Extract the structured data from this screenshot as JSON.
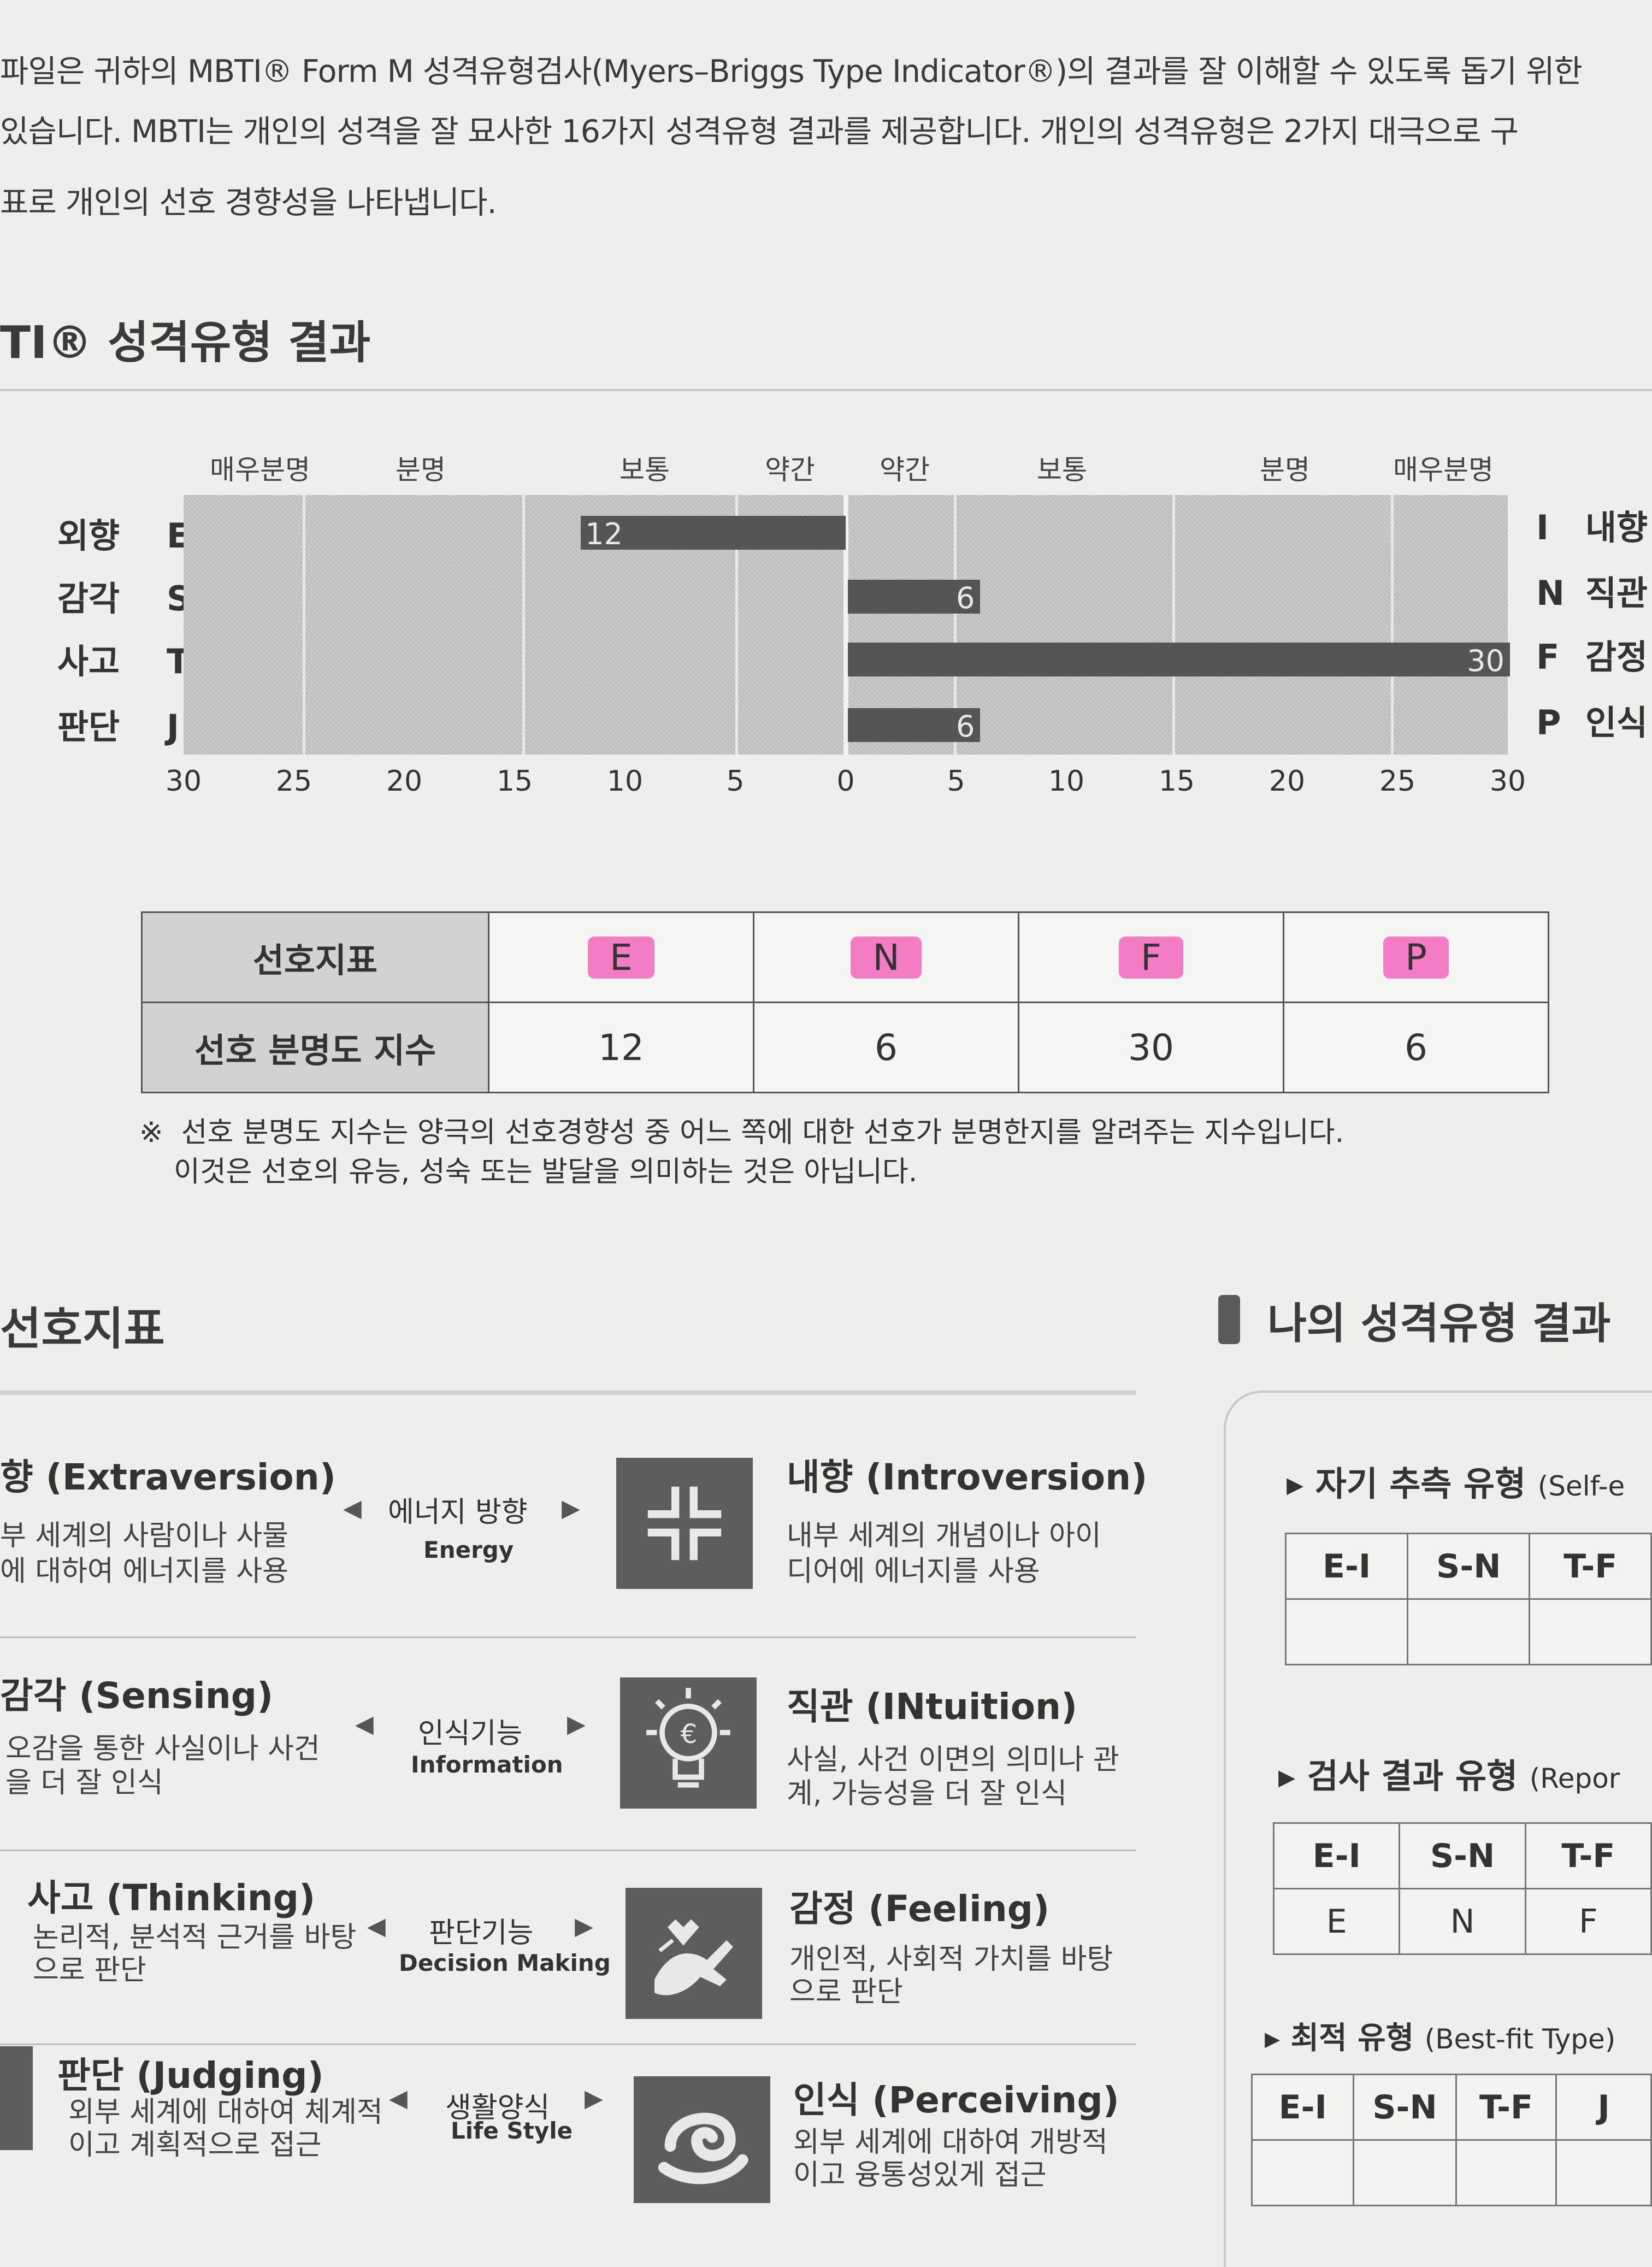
{
  "intro": [
    "파일은 귀하의 MBTI® Form M 성격유형검사(Myers–Briggs Type Indicator®)의 결과를 잘 이해할 수 있도록 돕기 위한",
    "있습니다. MBTI는 개인의 성격을 잘 묘사한 16가지 성격유형 결과를 제공합니다. 개인의 성격유형은 2가지 대극으로 구",
    "표로 개인의 선호 경향성을 나타냅니다."
  ],
  "result_section_title": "TI® 성격유형 결과",
  "chart_data": {
    "type": "bar",
    "orientation": "horizontal-diverging",
    "xlim": [
      -30,
      30
    ],
    "ticks": [
      "30",
      "25",
      "20",
      "15",
      "10",
      "5",
      "0",
      "5",
      "10",
      "15",
      "20",
      "25",
      "30"
    ],
    "bands_left": [
      "매우분명",
      "분명",
      "보통",
      "약간"
    ],
    "bands_right": [
      "약간",
      "보통",
      "분명",
      "매우분명"
    ],
    "rows": [
      {
        "left_label": "외향",
        "left_letter": "E",
        "right_letter": "I",
        "right_label": "내향",
        "side": "left",
        "value": 12
      },
      {
        "left_label": "감각",
        "left_letter": "S",
        "right_letter": "N",
        "right_label": "직관",
        "side": "right",
        "value": 6
      },
      {
        "left_label": "사고",
        "left_letter": "T",
        "right_letter": "F",
        "right_label": "감정",
        "side": "right",
        "value": 30
      },
      {
        "left_label": "판단",
        "left_letter": "J",
        "right_letter": "P",
        "right_label": "인식",
        "side": "right",
        "value": 6
      }
    ],
    "bar_color": "#555553"
  },
  "pref_table": {
    "header1": "선호지표",
    "header2": "선호 분명도 지수",
    "letters": [
      "E",
      "N",
      "F",
      "P"
    ],
    "values": [
      "12",
      "6",
      "30",
      "6"
    ],
    "highlight_color": "#f47cc4"
  },
  "note": {
    "mark": "※",
    "line1": "선호 분명도 지수는 양극의 선호경향성 중 어느 쪽에 대한 선호가 분명한지를 알려주는 지수입니다.",
    "line2": "이것은 선호의 유능, 성숙 또는 발달을 의미하는 것은 아닙니다."
  },
  "indicator_section_title": "선호지표",
  "indicators": [
    {
      "left_title": "향 (Extraversion)",
      "left_desc1": "부 세계의 사람이나 사물",
      "left_desc2": "에 대하여 에너지를 사용",
      "mid_ko": "에너지 방향",
      "mid_en": "Energy",
      "icon": "inward-arrows-icon",
      "right_title": "내향 (Introversion)",
      "right_desc1": "내부 세계의 개념이나 아이",
      "right_desc2": "디어에 에너지를 사용"
    },
    {
      "left_title": "감각 (Sensing)",
      "left_desc1": "오감을 통한 사실이나 사건",
      "left_desc2": "을 더 잘 인식",
      "mid_ko": "인식기능",
      "mid_en": "Information",
      "icon": "lightbulb-icon",
      "right_title": "직관 (INtuition)",
      "right_desc1": "사실, 사건 이면의 의미나 관",
      "right_desc2": "계, 가능성을 더 잘 인식"
    },
    {
      "left_title": "사고 (Thinking)",
      "left_desc1": "논리적, 분석적 근거를 바탕",
      "left_desc2": "으로 판단",
      "mid_ko": "판단기능",
      "mid_en": "Decision Making",
      "icon": "hands-heart-icon",
      "right_title": "감정 (Feeling)",
      "right_desc1": "개인적, 사회적 가치를 바탕",
      "right_desc2": "으로 판단"
    },
    {
      "left_title": "판단 (Judging)",
      "left_desc1": "외부 세계에 대하여 체계적",
      "left_desc2": "이고 계획적으로 접근",
      "mid_ko": "생활양식",
      "mid_en": "Life Style",
      "icon": "swirl-icon",
      "right_title": "인식 (Perceiving)",
      "right_desc1": "외부 세계에 대하여 개방적",
      "right_desc2": "이고 융통성있게 접근"
    }
  ],
  "my_result": {
    "title": "나의 성격유형 결과",
    "self": {
      "label": "▸ 자기 추측 유형",
      "en": "(Self-e",
      "cols": [
        "E-I",
        "S-N",
        "T-F"
      ],
      "vals": [
        "",
        "",
        ""
      ]
    },
    "reported": {
      "label": "▸ 검사 결과 유형",
      "en": "(Repor",
      "cols": [
        "E-I",
        "S-N",
        "T-F"
      ],
      "vals": [
        "E",
        "N",
        "F"
      ]
    },
    "bestfit": {
      "label": "▸ 최적 유형",
      "en": "(Best-fit Type)",
      "cols": [
        "E-I",
        "S-N",
        "T-F",
        "J"
      ],
      "vals": [
        "",
        "",
        "",
        ""
      ]
    }
  }
}
